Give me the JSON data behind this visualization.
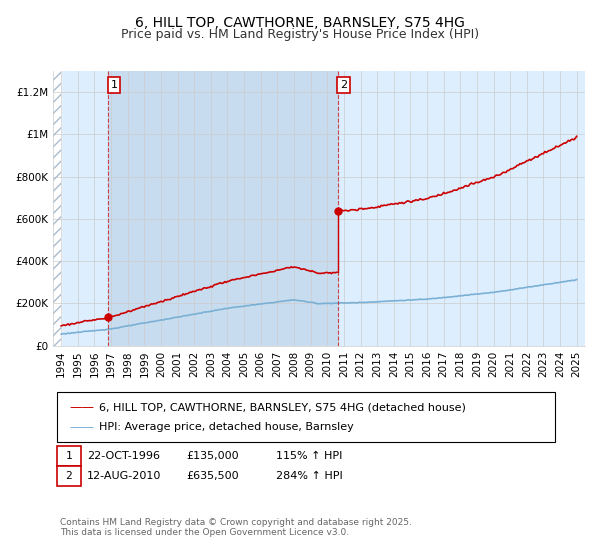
{
  "title": "6, HILL TOP, CAWTHORNE, BARNSLEY, S75 4HG",
  "subtitle": "Price paid vs. HM Land Registry's House Price Index (HPI)",
  "ylim": [
    0,
    1300000
  ],
  "xlim_start": 1993.5,
  "xlim_end": 2025.5,
  "yticks": [
    0,
    200000,
    400000,
    600000,
    800000,
    1000000,
    1200000
  ],
  "ytick_labels": [
    "£0",
    "£200K",
    "£400K",
    "£600K",
    "£800K",
    "£1M",
    "£1.2M"
  ],
  "xticks": [
    1994,
    1995,
    1996,
    1997,
    1998,
    1999,
    2000,
    2001,
    2002,
    2003,
    2004,
    2005,
    2006,
    2007,
    2008,
    2009,
    2010,
    2011,
    2012,
    2013,
    2014,
    2015,
    2016,
    2017,
    2018,
    2019,
    2020,
    2021,
    2022,
    2023,
    2024,
    2025
  ],
  "sale1_x": 1996.81,
  "sale1_y": 135000,
  "sale2_x": 2010.62,
  "sale2_y": 635500,
  "legend_line1": "6, HILL TOP, CAWTHORNE, BARNSLEY, S75 4HG (detached house)",
  "legend_line2": "HPI: Average price, detached house, Barnsley",
  "copyright_text": "Contains HM Land Registry data © Crown copyright and database right 2025.\nThis data is licensed under the Open Government Licence v3.0.",
  "red_color": "#cc0000",
  "blue_color": "#7ab0d4",
  "bg_plot": "#ddeeff",
  "bg_shaded": "#c8dcf0",
  "hatch_color": "#aabbcc",
  "grid_color": "#cccccc",
  "title_fontsize": 10,
  "subtitle_fontsize": 9,
  "tick_fontsize": 7.5,
  "legend_fontsize": 8,
  "annotation_fontsize": 8,
  "copyright_fontsize": 6.5
}
